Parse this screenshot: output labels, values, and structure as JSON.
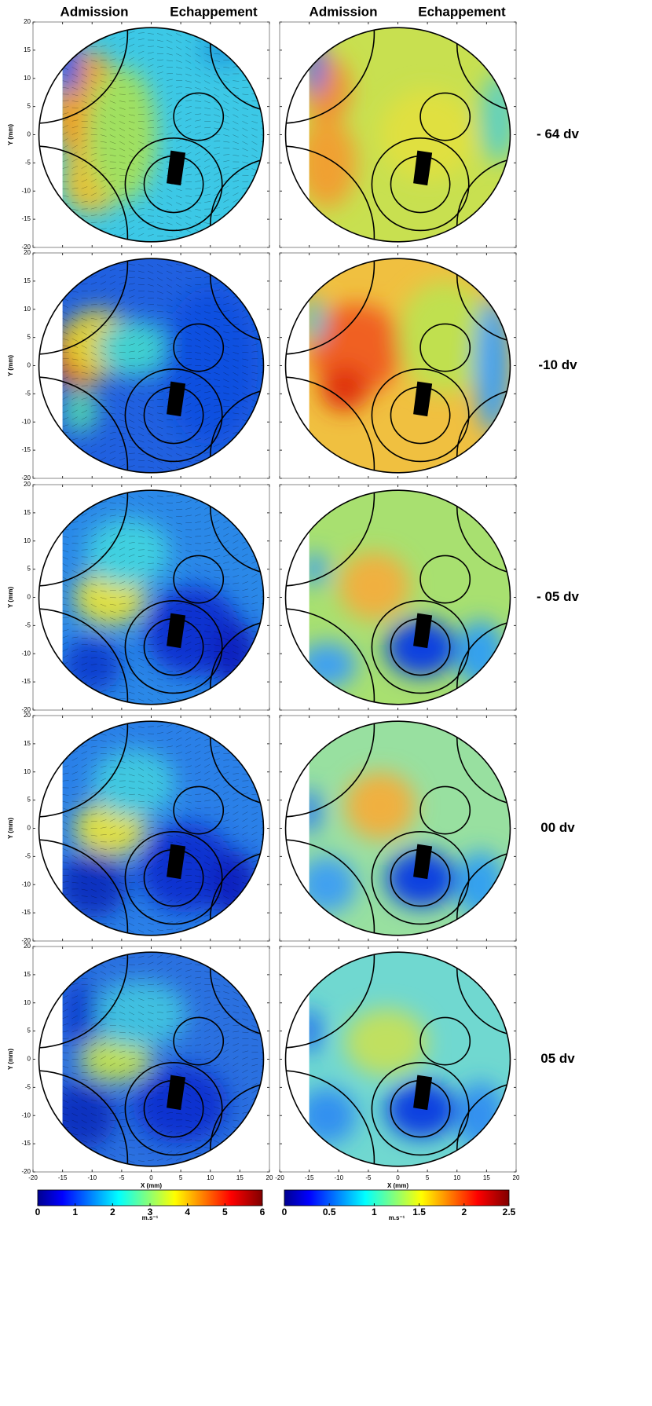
{
  "headers": [
    [
      "Admission",
      "Echappement"
    ],
    [
      "Admission",
      "Echappement"
    ]
  ],
  "row_labels": [
    "- 64 dv",
    "-10 dv",
    "- 05 dv",
    "00 dv",
    "05 dv"
  ],
  "axes": {
    "xlabel": "X (mm)",
    "ylabel": "Y (mm)",
    "xlim": [
      -20,
      20
    ],
    "ylim": [
      -20,
      20
    ],
    "xticks": [
      -20,
      -15,
      -10,
      -5,
      0,
      5,
      10,
      15,
      20
    ],
    "yticks": [
      -20,
      -15,
      -10,
      -5,
      0,
      5,
      10,
      15,
      20
    ]
  },
  "colorbars": [
    {
      "unit": "m.s⁻¹",
      "lim": [
        0,
        6
      ],
      "ticks": [
        0,
        1,
        2,
        3,
        4,
        5,
        6
      ]
    },
    {
      "unit": "m.s⁻¹",
      "lim": [
        0,
        2.5
      ],
      "ticks": [
        0,
        0.5,
        1,
        1.5,
        2,
        2.5
      ]
    }
  ]
}
